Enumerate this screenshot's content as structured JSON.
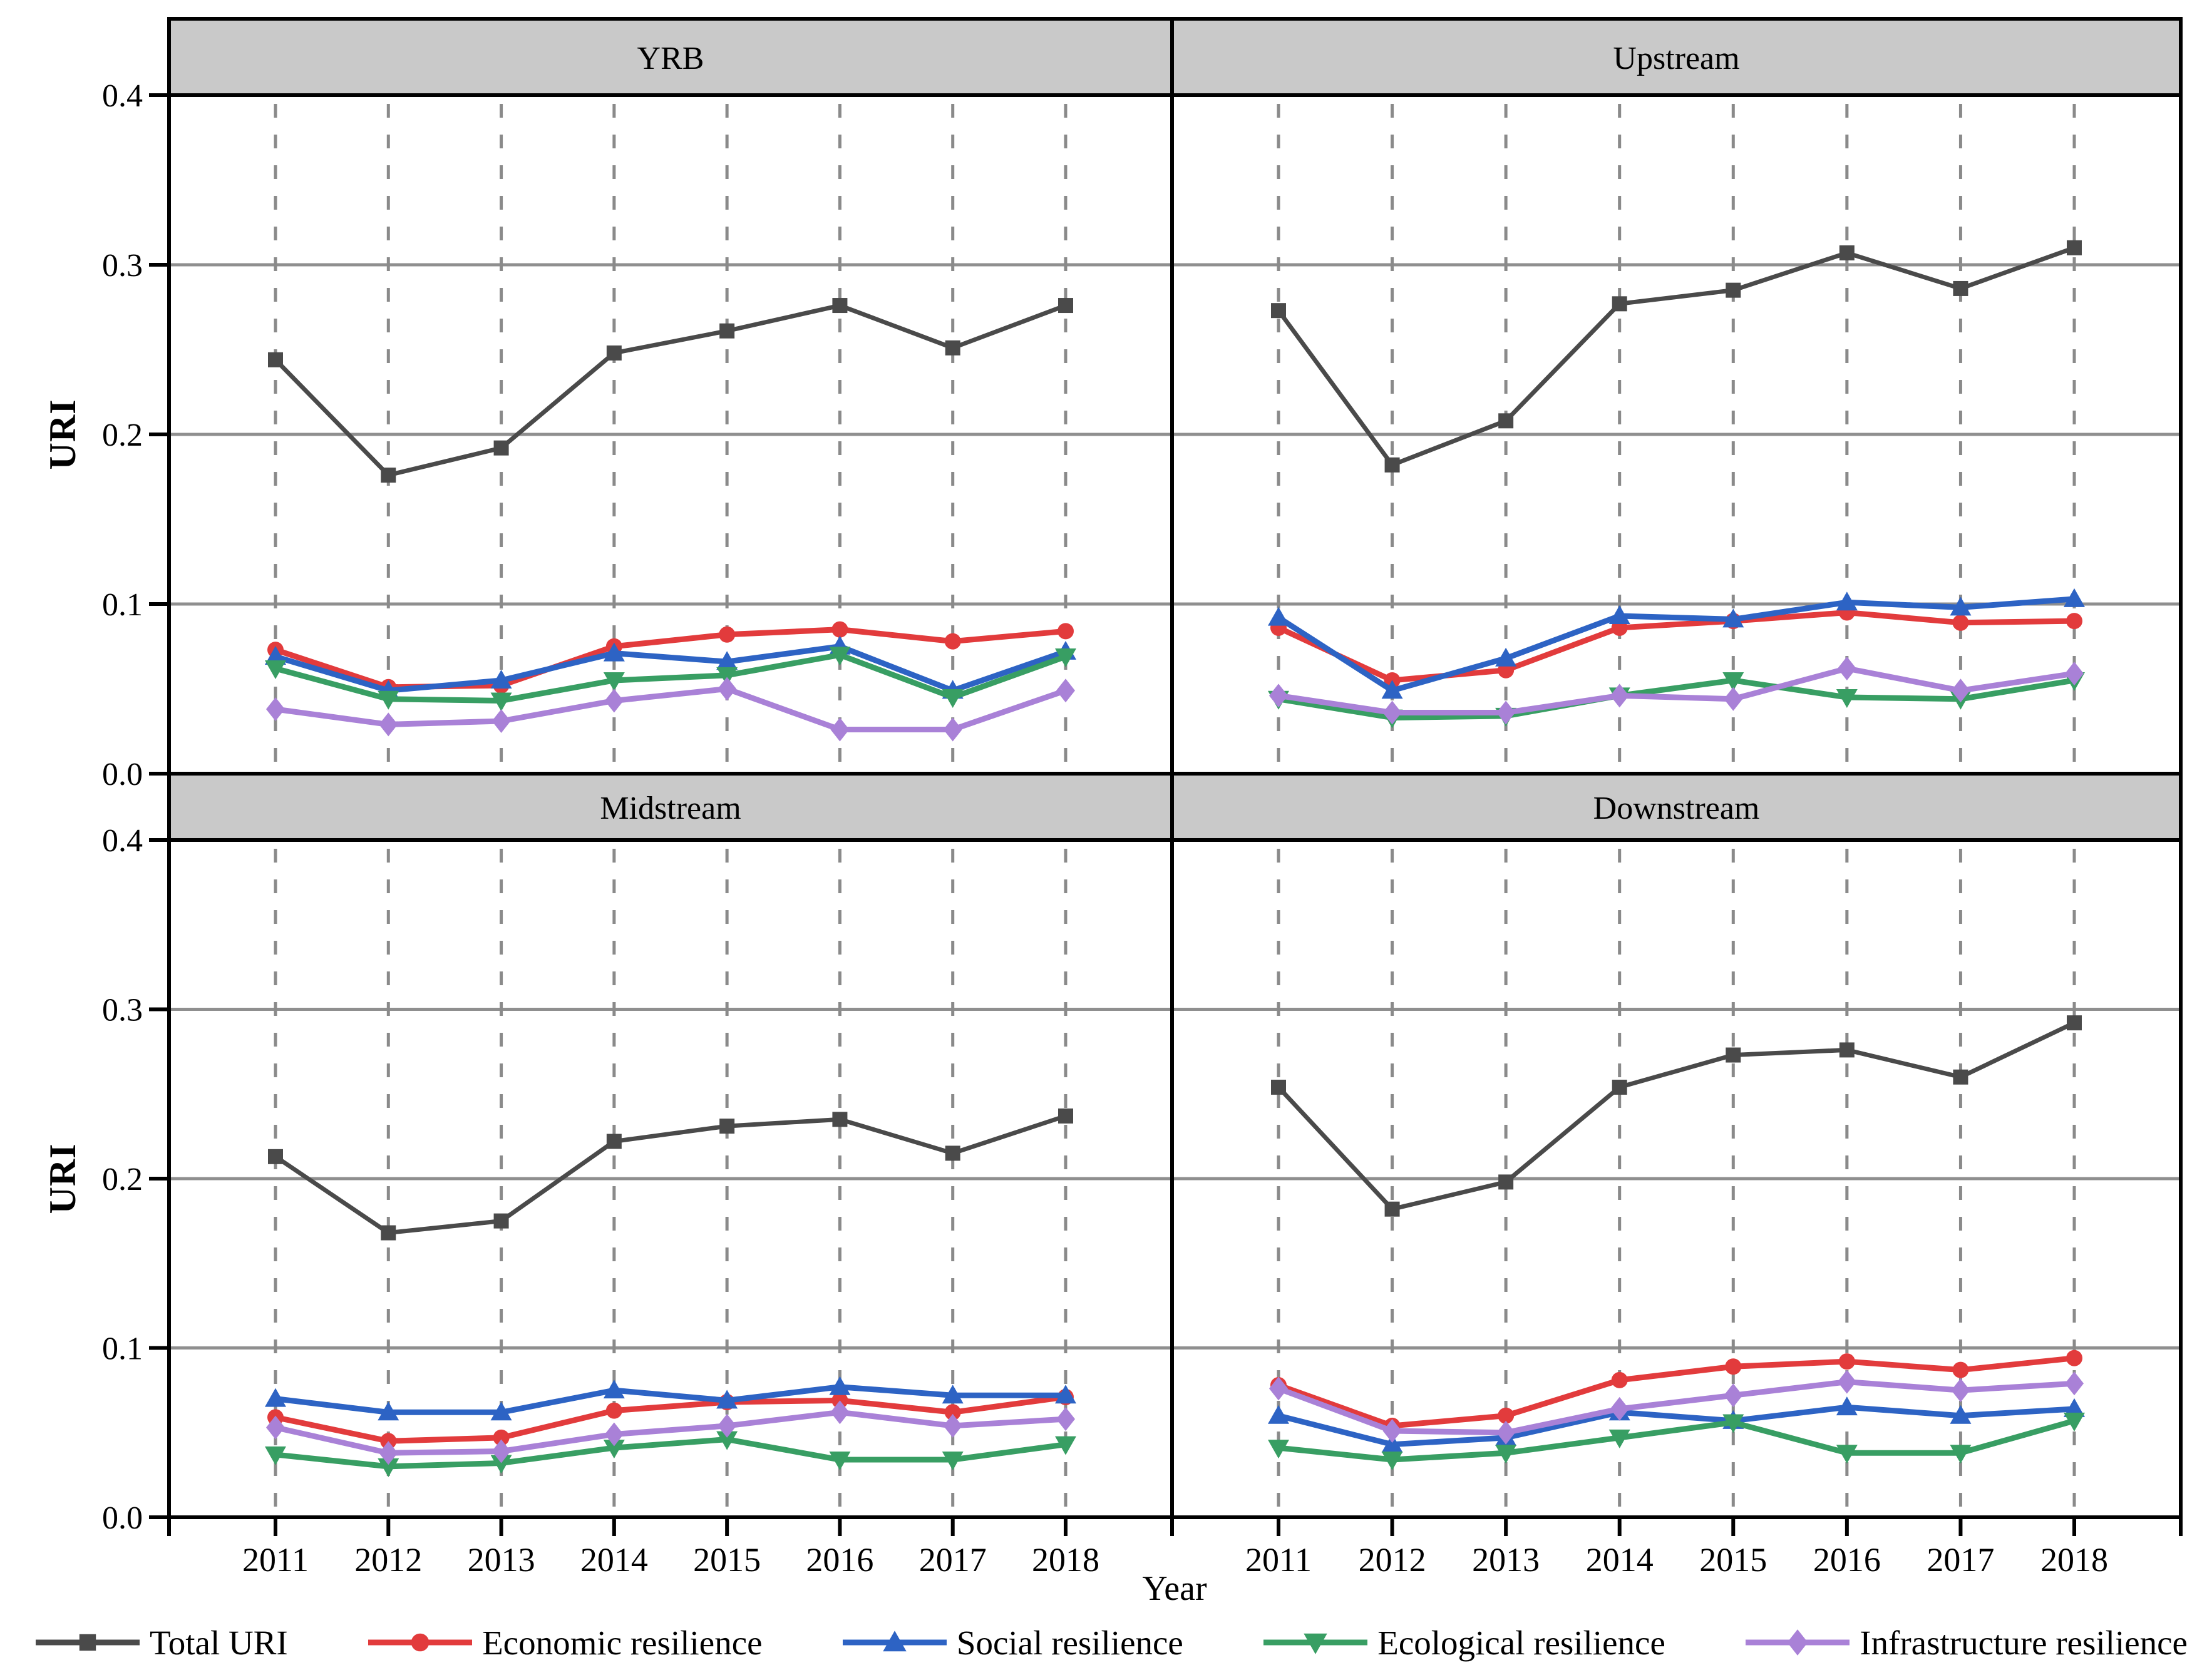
{
  "figure": {
    "ylabel": "URI",
    "xlabel": "Year",
    "ylim": [
      0,
      0.4
    ],
    "yticks": [
      "0.0",
      "0.1",
      "0.2",
      "0.3",
      "0.4"
    ],
    "years": [
      "2011",
      "2012",
      "2013",
      "2014",
      "2015",
      "2016",
      "2017",
      "2018"
    ],
    "grid": "horizontal solid gray at 0.1/0.2/0.3, vertical dashed gray at each year",
    "header_fill": "#c9c9c9",
    "hgrid_color": "#8f8f8f",
    "vgrid_color": "#8a8a8a",
    "border_color": "#000000"
  },
  "legend": [
    {
      "label": "Total URI",
      "color": "#4a4a4a",
      "marker": "square"
    },
    {
      "label": "Economic resilience",
      "color": "#e23b3c",
      "marker": "circle"
    },
    {
      "label": "Social resilience",
      "color": "#2d63c4",
      "marker": "triangle-up"
    },
    {
      "label": "Ecological resilience",
      "color": "#389e63",
      "marker": "triangle-down"
    },
    {
      "label": "Infrastructure resilience",
      "color": "#a981d7",
      "marker": "diamond"
    }
  ],
  "chart_data": [
    {
      "type": "line",
      "title": "YRB",
      "x": [
        2011,
        2012,
        2013,
        2014,
        2015,
        2016,
        2017,
        2018
      ],
      "ylim": [
        0,
        0.4
      ],
      "series": [
        {
          "name": "Total URI",
          "values": [
            0.244,
            0.176,
            0.192,
            0.248,
            0.261,
            0.276,
            0.251,
            0.276
          ]
        },
        {
          "name": "Economic resilience",
          "values": [
            0.073,
            0.051,
            0.052,
            0.075,
            0.082,
            0.085,
            0.078,
            0.084
          ]
        },
        {
          "name": "Social resilience",
          "values": [
            0.069,
            0.049,
            0.055,
            0.071,
            0.066,
            0.075,
            0.049,
            0.072
          ]
        },
        {
          "name": "Ecological resilience",
          "values": [
            0.062,
            0.044,
            0.043,
            0.055,
            0.058,
            0.07,
            0.045,
            0.069
          ]
        },
        {
          "name": "Infrastructure resilience",
          "values": [
            0.038,
            0.029,
            0.031,
            0.043,
            0.05,
            0.026,
            0.026,
            0.049
          ]
        }
      ]
    },
    {
      "type": "line",
      "title": "Upstream",
      "x": [
        2011,
        2012,
        2013,
        2014,
        2015,
        2016,
        2017,
        2018
      ],
      "ylim": [
        0,
        0.4
      ],
      "series": [
        {
          "name": "Total URI",
          "values": [
            0.273,
            0.182,
            0.208,
            0.277,
            0.285,
            0.307,
            0.286,
            0.31
          ]
        },
        {
          "name": "Economic resilience",
          "values": [
            0.086,
            0.055,
            0.061,
            0.086,
            0.09,
            0.095,
            0.089,
            0.09
          ]
        },
        {
          "name": "Social resilience",
          "values": [
            0.092,
            0.049,
            0.068,
            0.093,
            0.091,
            0.101,
            0.098,
            0.103
          ]
        },
        {
          "name": "Ecological resilience",
          "values": [
            0.044,
            0.033,
            0.034,
            0.046,
            0.055,
            0.045,
            0.044,
            0.055
          ]
        },
        {
          "name": "Infrastructure resilience",
          "values": [
            0.046,
            0.036,
            0.036,
            0.046,
            0.044,
            0.062,
            0.049,
            0.059
          ]
        }
      ]
    },
    {
      "type": "line",
      "title": "Midstream",
      "x": [
        2011,
        2012,
        2013,
        2014,
        2015,
        2016,
        2017,
        2018
      ],
      "ylim": [
        0,
        0.4
      ],
      "series": [
        {
          "name": "Total URI",
          "values": [
            0.213,
            0.168,
            0.175,
            0.222,
            0.231,
            0.235,
            0.215,
            0.237
          ]
        },
        {
          "name": "Economic resilience",
          "values": [
            0.059,
            0.045,
            0.047,
            0.063,
            0.068,
            0.069,
            0.062,
            0.071
          ]
        },
        {
          "name": "Social resilience",
          "values": [
            0.07,
            0.062,
            0.062,
            0.075,
            0.069,
            0.077,
            0.072,
            0.072
          ]
        },
        {
          "name": "Ecological resilience",
          "values": [
            0.037,
            0.03,
            0.032,
            0.041,
            0.046,
            0.034,
            0.034,
            0.043
          ]
        },
        {
          "name": "Infrastructure resilience",
          "values": [
            0.053,
            0.038,
            0.039,
            0.049,
            0.054,
            0.062,
            0.054,
            0.058
          ]
        }
      ]
    },
    {
      "type": "line",
      "title": "Downstream",
      "x": [
        2011,
        2012,
        2013,
        2014,
        2015,
        2016,
        2017,
        2018
      ],
      "ylim": [
        0,
        0.4
      ],
      "series": [
        {
          "name": "Total URI",
          "values": [
            0.254,
            0.182,
            0.198,
            0.254,
            0.273,
            0.276,
            0.26,
            0.292
          ]
        },
        {
          "name": "Economic resilience",
          "values": [
            0.078,
            0.054,
            0.06,
            0.081,
            0.089,
            0.092,
            0.087,
            0.094
          ]
        },
        {
          "name": "Social resilience",
          "values": [
            0.06,
            0.043,
            0.047,
            0.062,
            0.057,
            0.065,
            0.06,
            0.064
          ]
        },
        {
          "name": "Ecological resilience",
          "values": [
            0.041,
            0.034,
            0.038,
            0.047,
            0.056,
            0.038,
            0.038,
            0.057
          ]
        },
        {
          "name": "Infrastructure resilience",
          "values": [
            0.076,
            0.051,
            0.05,
            0.064,
            0.072,
            0.08,
            0.075,
            0.079
          ]
        }
      ]
    }
  ]
}
